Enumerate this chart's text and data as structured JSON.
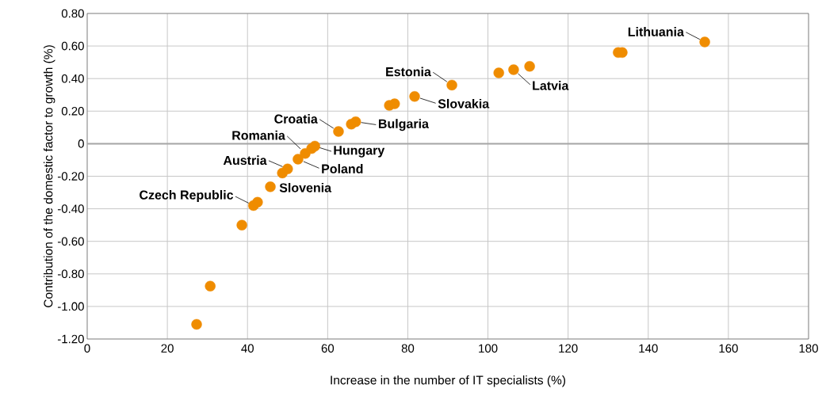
{
  "chart_data": {
    "type": "scatter",
    "xlabel": "Increase in the number of IT specialists (%)",
    "ylabel": "Contribution of the domestic factor to growth (%)",
    "x": [
      27.3,
      30.7,
      38.6,
      41.5,
      42.5,
      45.7,
      48.7,
      50.0,
      52.6,
      54.4,
      56.0,
      56.8,
      62.7,
      65.9,
      67.0,
      75.4,
      76.7,
      81.7,
      91.0,
      102.7,
      106.4,
      110.4,
      132.5,
      133.5,
      154.1
    ],
    "values": [
      -1.11,
      -0.875,
      -0.5,
      -0.38,
      -0.36,
      -0.265,
      -0.18,
      -0.155,
      -0.095,
      -0.06,
      -0.03,
      -0.015,
      0.075,
      0.12,
      0.135,
      0.235,
      0.245,
      0.29,
      0.36,
      0.435,
      0.455,
      0.475,
      0.56,
      0.56,
      0.625
    ],
    "color": "#ef8c00",
    "xlim": [
      0,
      180
    ],
    "xticks": [
      0,
      20,
      40,
      60,
      80,
      100,
      120,
      140,
      160,
      180
    ],
    "ylim": [
      -1.2,
      0.8
    ],
    "yticks": [
      {
        "value": -1.2,
        "label": "-1.20"
      },
      {
        "value": -1.0,
        "label": "-1.00"
      },
      {
        "value": -0.8,
        "label": "-0.80"
      },
      {
        "value": -0.6,
        "label": "-0.60"
      },
      {
        "value": -0.4,
        "label": "-0.40"
      },
      {
        "value": -0.2,
        "label": "-0.20"
      },
      0,
      {
        "value": 0.2,
        "label": "0.20"
      },
      {
        "value": 0.4,
        "label": "0.40"
      },
      {
        "value": 0.6,
        "label": "0.60"
      },
      {
        "value": 0.8,
        "label": "0.80"
      }
    ],
    "grid": true,
    "ref_lines": [
      {
        "axis": "y",
        "value": 0,
        "color": "#a6a6a6"
      }
    ],
    "annotations": [
      {
        "text": "Lithuania",
        "x": 154.1,
        "y": 0.625
      },
      {
        "text": "Latvia",
        "x": 106.4,
        "y": 0.455
      },
      {
        "text": "Estonia",
        "x": 91.0,
        "y": 0.36
      },
      {
        "text": "Slovakia",
        "x": 81.7,
        "y": 0.29
      },
      {
        "text": "Bulgaria",
        "x": 67.0,
        "y": 0.135
      },
      {
        "text": "Croatia",
        "x": 62.7,
        "y": 0.075
      },
      {
        "text": "Hungary",
        "x": 56.8,
        "y": -0.015
      },
      {
        "text": "Romania",
        "x": 54.4,
        "y": -0.06
      },
      {
        "text": "Poland",
        "x": 52.6,
        "y": -0.095
      },
      {
        "text": "Austria",
        "x": 50.0,
        "y": -0.155
      },
      {
        "text": "Slovenia",
        "x": 45.7,
        "y": -0.265
      },
      {
        "text": "Czech Republic",
        "x": 41.5,
        "y": -0.38
      }
    ]
  }
}
